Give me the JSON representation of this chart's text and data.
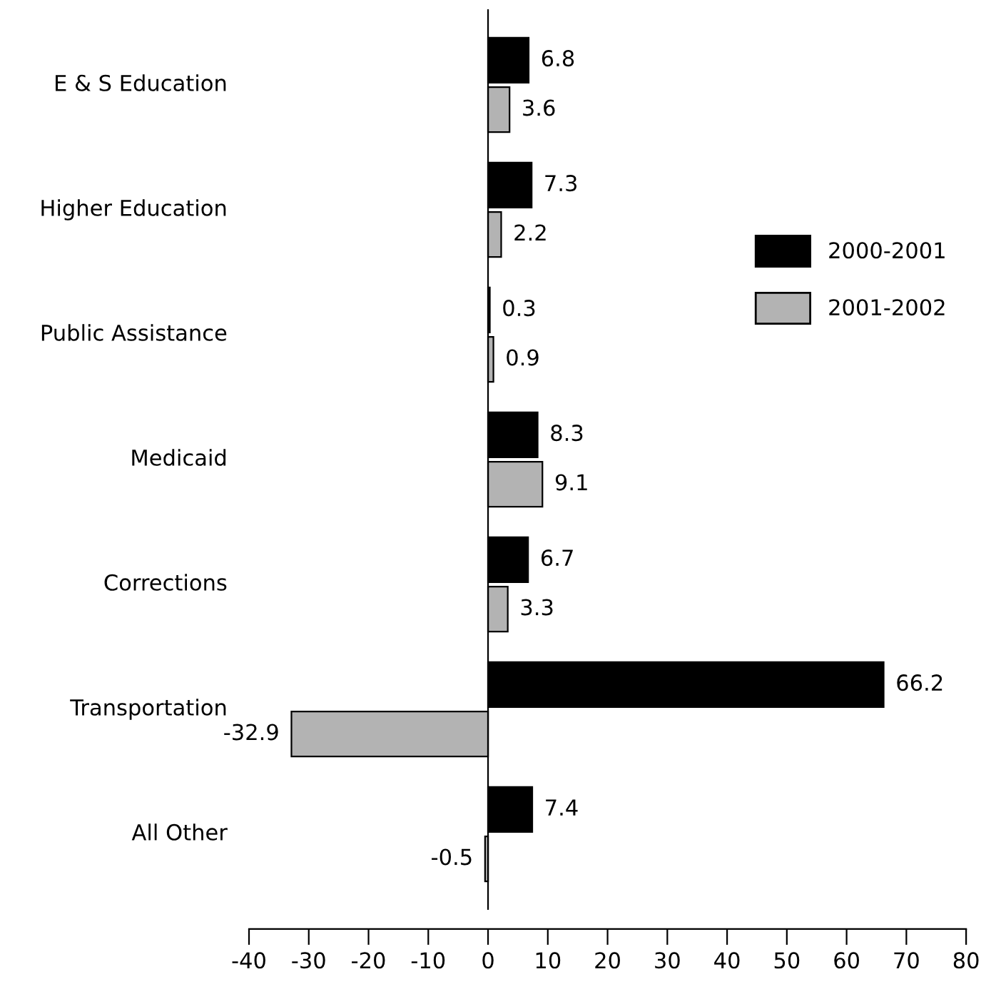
{
  "chart_data": {
    "type": "bar",
    "orientation": "horizontal",
    "categories": [
      "E & S Education",
      "Higher Education",
      "Public Assistance",
      "Medicaid",
      "Corrections",
      "Transportation",
      "All Other"
    ],
    "series": [
      {
        "name": "2000-2001",
        "color": "#000000",
        "values": [
          6.8,
          7.3,
          0.3,
          8.3,
          6.7,
          66.2,
          7.4
        ]
      },
      {
        "name": "2001-2002",
        "color": "#b3b3b3",
        "values": [
          3.6,
          2.2,
          0.9,
          9.1,
          3.3,
          -32.9,
          -0.5
        ]
      }
    ],
    "xlim": [
      -40,
      80
    ],
    "xticks": [
      -40,
      -30,
      -20,
      -10,
      0,
      10,
      20,
      30,
      40,
      50,
      60,
      70,
      80
    ],
    "data_labels": true,
    "legend": "right"
  }
}
